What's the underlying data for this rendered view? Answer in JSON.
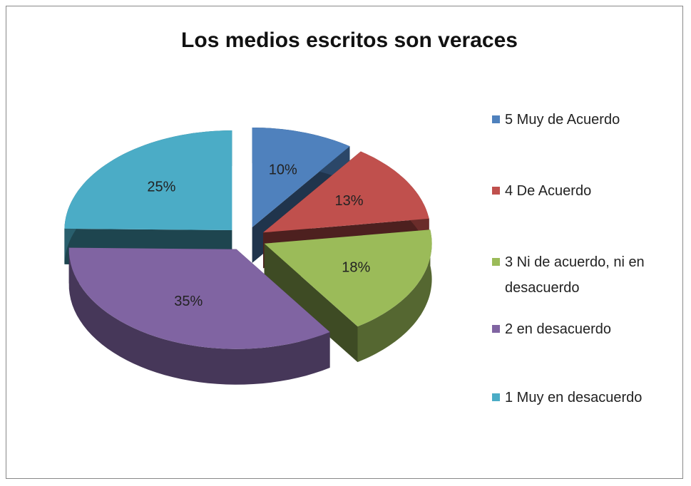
{
  "chart_data": {
    "type": "pie3d",
    "title": "Los medios escritos son veraces",
    "categories": [
      "5 Muy de Acuerdo",
      "4 De Acuerdo",
      "3 Ni de acuerdo, ni en desacuerdo",
      "2 en desacuerdo",
      "1 Muy en desacuerdo"
    ],
    "values": [
      10,
      13,
      18,
      35,
      25
    ],
    "value_labels": [
      "10%",
      "13%",
      "18%",
      "35%",
      "25%"
    ],
    "colors": [
      "#4f81bd",
      "#c0504d",
      "#9bbb59",
      "#8064a2",
      "#4bacc6"
    ],
    "legend": "right"
  }
}
